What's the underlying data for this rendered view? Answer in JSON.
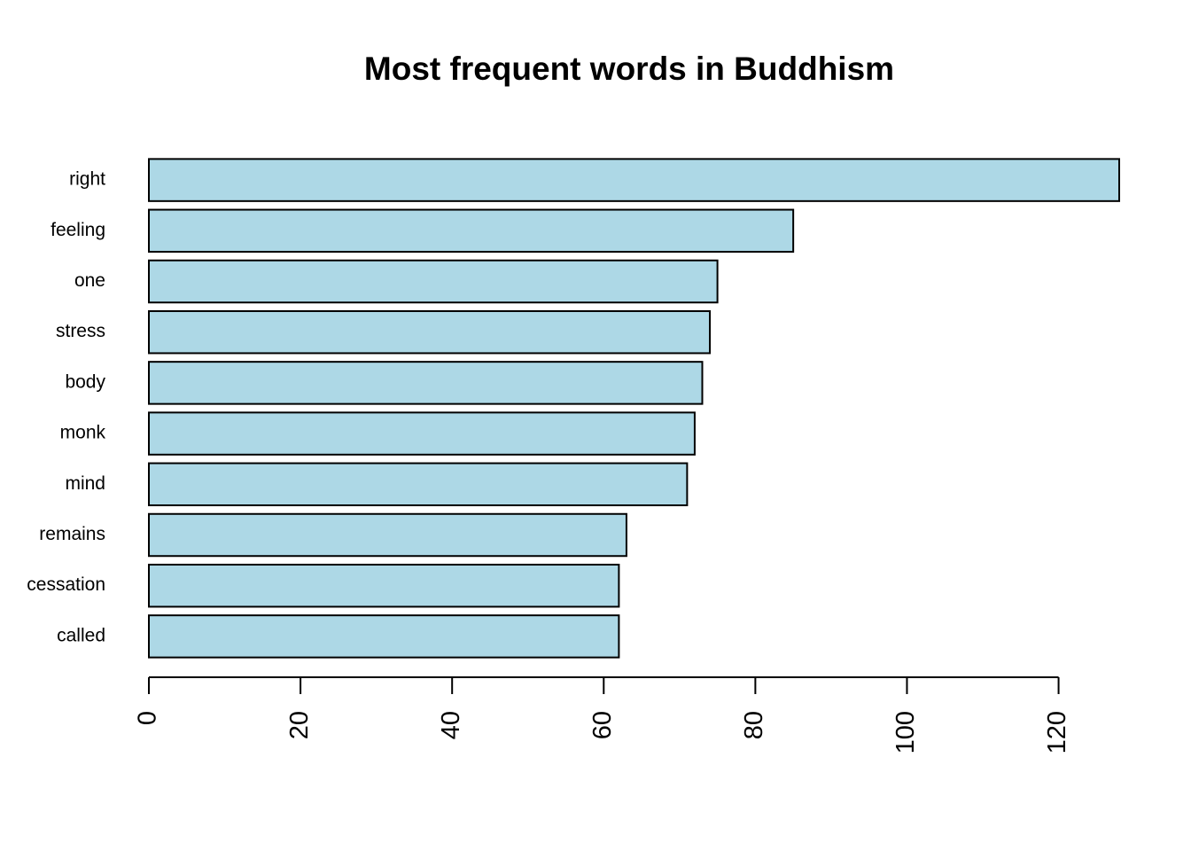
{
  "chart_data": {
    "type": "barh",
    "title": "Most frequent words in Buddhism",
    "categories": [
      "right",
      "feeling",
      "one",
      "stress",
      "body",
      "monk",
      "mind",
      "remains",
      "cessation",
      "called"
    ],
    "values": [
      128,
      85,
      75,
      74,
      73,
      72,
      71,
      63,
      62,
      62
    ],
    "color": "#add8e6",
    "xlim": [
      0,
      128
    ],
    "xticks": [
      0,
      20,
      40,
      60,
      80,
      100,
      120
    ]
  }
}
